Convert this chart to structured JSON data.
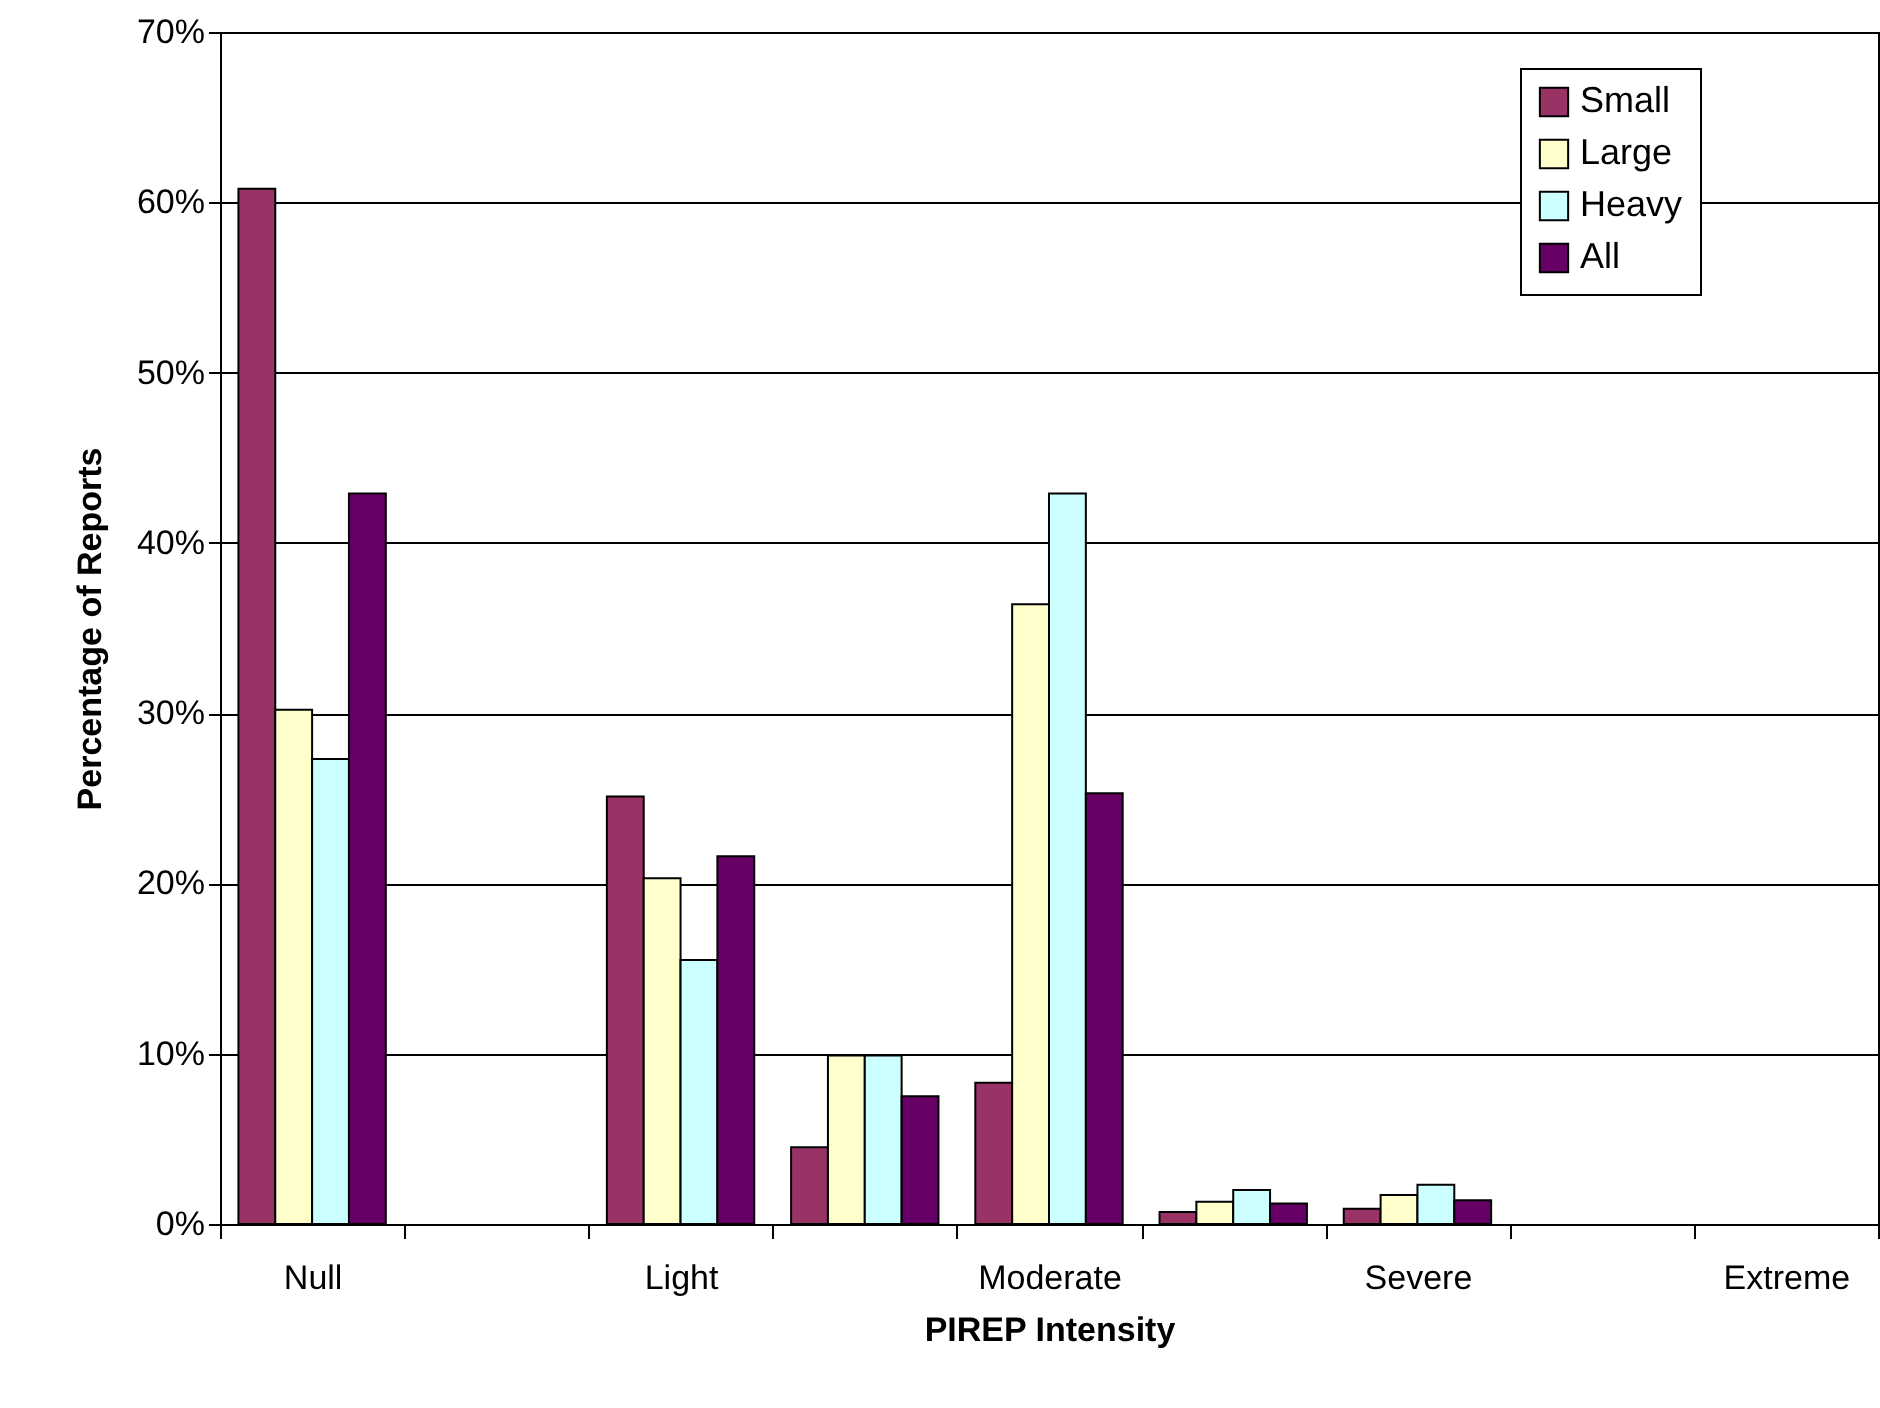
{
  "chart_data": {
    "type": "bar",
    "xlabel": "PIREP Intensity",
    "ylabel": "Percentage of Reports",
    "categories": [
      "Null",
      null,
      "Light",
      null,
      "Moderate",
      null,
      "Severe",
      null,
      "Extreme"
    ],
    "series": [
      {
        "name": "Small",
        "color": "#993366",
        "values": [
          60.8,
          null,
          25.1,
          4.5,
          8.3,
          0.7,
          0.9,
          null,
          null
        ]
      },
      {
        "name": "Large",
        "color": "#ffffcc",
        "values": [
          30.2,
          null,
          20.3,
          9.9,
          36.4,
          1.3,
          1.7,
          null,
          null
        ]
      },
      {
        "name": "Heavy",
        "color": "#ccffff",
        "values": [
          27.3,
          null,
          15.5,
          9.9,
          42.9,
          2.0,
          2.3,
          null,
          null
        ]
      },
      {
        "name": "All",
        "color": "#660066",
        "values": [
          42.9,
          null,
          21.6,
          7.5,
          25.3,
          1.2,
          1.4,
          null,
          null
        ]
      }
    ],
    "ylim": [
      0,
      70
    ],
    "yticks": [
      {
        "value": 0,
        "label": "0%"
      },
      {
        "value": 10,
        "label": "10%"
      },
      {
        "value": 20,
        "label": "20%"
      },
      {
        "value": 30,
        "label": "30%"
      },
      {
        "value": 40,
        "label": "40%"
      },
      {
        "value": 50,
        "label": "50%"
      },
      {
        "value": 60,
        "label": "60%"
      },
      {
        "value": 70,
        "label": "70%"
      }
    ],
    "grid": "y",
    "legend": "top right"
  }
}
